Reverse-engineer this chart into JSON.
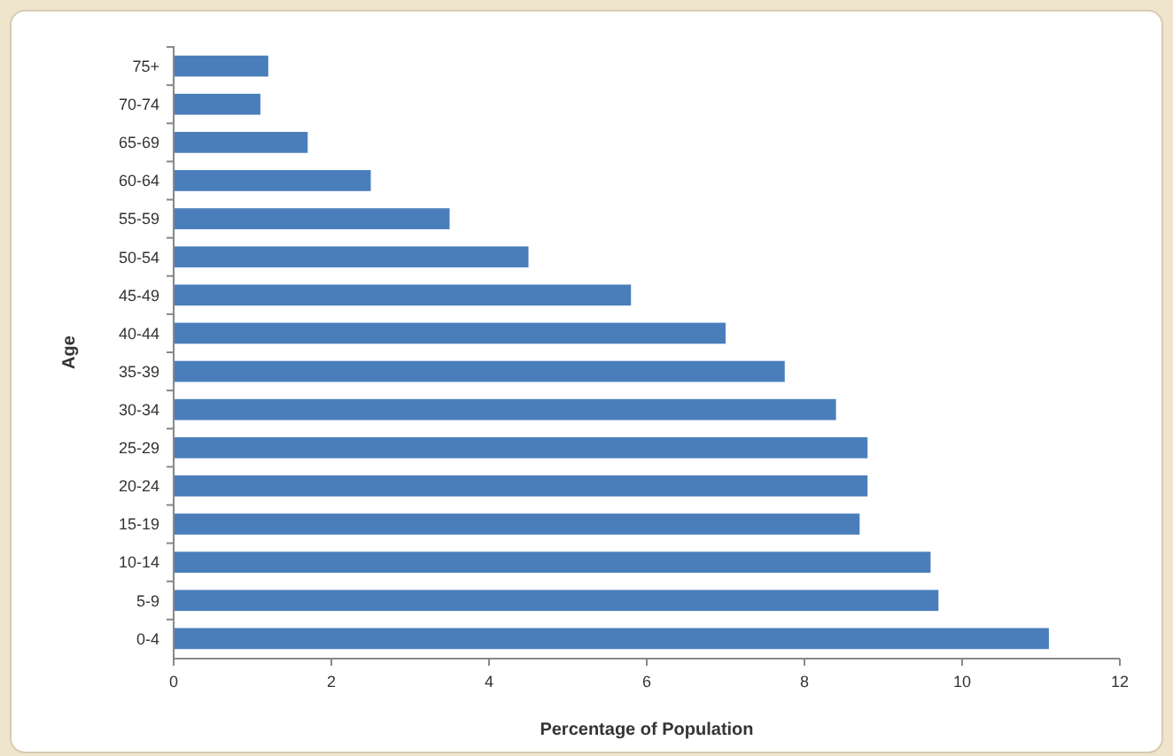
{
  "chart_data": {
    "type": "bar",
    "orientation": "horizontal",
    "xlabel": "Percentage of Population",
    "ylabel": "Age",
    "categories": [
      "75+",
      "70-74",
      "65-69",
      "60-64",
      "55-59",
      "50-54",
      "45-49",
      "40-44",
      "35-39",
      "30-34",
      "25-29",
      "20-24",
      "15-19",
      "10-14",
      "5-9",
      "0-4"
    ],
    "values": [
      1.2,
      1.1,
      1.7,
      2.5,
      3.5,
      4.5,
      5.8,
      7.0,
      7.75,
      8.4,
      8.8,
      8.8,
      8.7,
      9.6,
      9.7,
      11.1
    ],
    "color": "#4a7ebb",
    "xlim": [
      0,
      12
    ],
    "xticks": [
      0,
      2,
      4,
      6,
      8,
      10,
      12
    ],
    "grid": false
  }
}
